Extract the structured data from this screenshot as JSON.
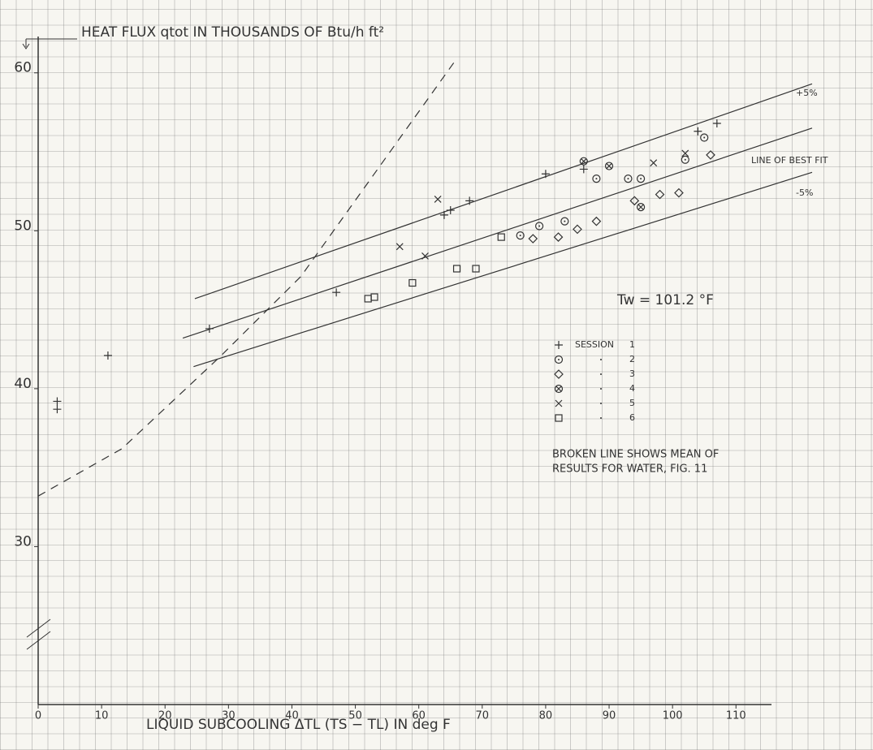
{
  "chart_data": {
    "type": "scatter",
    "title": "HEAT FLUX qtot IN THOUSANDS OF Btu/h ft²",
    "x_label": "LIQUID SUBCOOLING ΔTL (TS − TL) IN deg F",
    "xlim": [
      0,
      122
    ],
    "ylim": [
      20,
      62.3
    ],
    "xticks": [
      0,
      10,
      20,
      30,
      40,
      50,
      60,
      70,
      80,
      90,
      100,
      110
    ],
    "yticks": [
      30,
      40,
      50,
      60
    ],
    "color": "#333333",
    "legend_title": "SESSION",
    "series": [
      {
        "name": "1",
        "marker": "plus",
        "x": [
          3,
          3,
          11,
          27,
          47,
          64,
          65,
          68,
          80,
          86,
          104,
          107
        ],
        "values": [
          39.2,
          38.7,
          42.1,
          43.8,
          46.1,
          51,
          51.3,
          51.9,
          53.6,
          53.9,
          56.3,
          56.8
        ]
      },
      {
        "name": "2",
        "marker": "circle-dot",
        "x": [
          76,
          79,
          83,
          88,
          93,
          95,
          102,
          105
        ],
        "values": [
          49.7,
          50.3,
          50.6,
          53.3,
          53.3,
          53.3,
          54.5,
          55.9
        ]
      },
      {
        "name": "3",
        "marker": "diamond",
        "x": [
          78,
          82,
          85,
          88,
          94,
          98,
          101,
          106
        ],
        "values": [
          49.5,
          49.6,
          50.1,
          50.6,
          51.9,
          52.3,
          52.4,
          54.8
        ]
      },
      {
        "name": "4",
        "marker": "circle-x",
        "x": [
          86,
          90,
          95
        ],
        "values": [
          54.4,
          54.1,
          51.5
        ]
      },
      {
        "name": "5",
        "marker": "cross",
        "x": [
          57,
          61,
          63,
          97,
          102
        ],
        "values": [
          49,
          48.4,
          52,
          54.3,
          54.9
        ]
      },
      {
        "name": "6",
        "marker": "square",
        "x": [
          52,
          53,
          59,
          66,
          69,
          73
        ],
        "values": [
          45.7,
          45.8,
          46.7,
          47.6,
          47.6,
          49.6
        ]
      }
    ],
    "lines": [
      {
        "label": "+5%",
        "x": [
          24.7,
          122
        ],
        "values": [
          45.7,
          59.3
        ]
      },
      {
        "label": "LINE OF BEST FIT",
        "x": [
          22.8,
          122
        ],
        "values": [
          43.2,
          56.5
        ]
      },
      {
        "label": "-5%",
        "x": [
          24.5,
          122
        ],
        "values": [
          41.4,
          53.7
        ]
      },
      {
        "dashed": true,
        "x": [
          0,
          13.2,
          28.6,
          41.4,
          65.8
        ],
        "values": [
          33.2,
          36.2,
          42,
          47.1,
          60.8
        ]
      }
    ],
    "annotations": [
      "Tw = 101.2 °F"
    ],
    "note": [
      "BROKEN LINE SHOWS MEAN OF",
      "RESULTS FOR WATER, FIG. 11"
    ]
  }
}
